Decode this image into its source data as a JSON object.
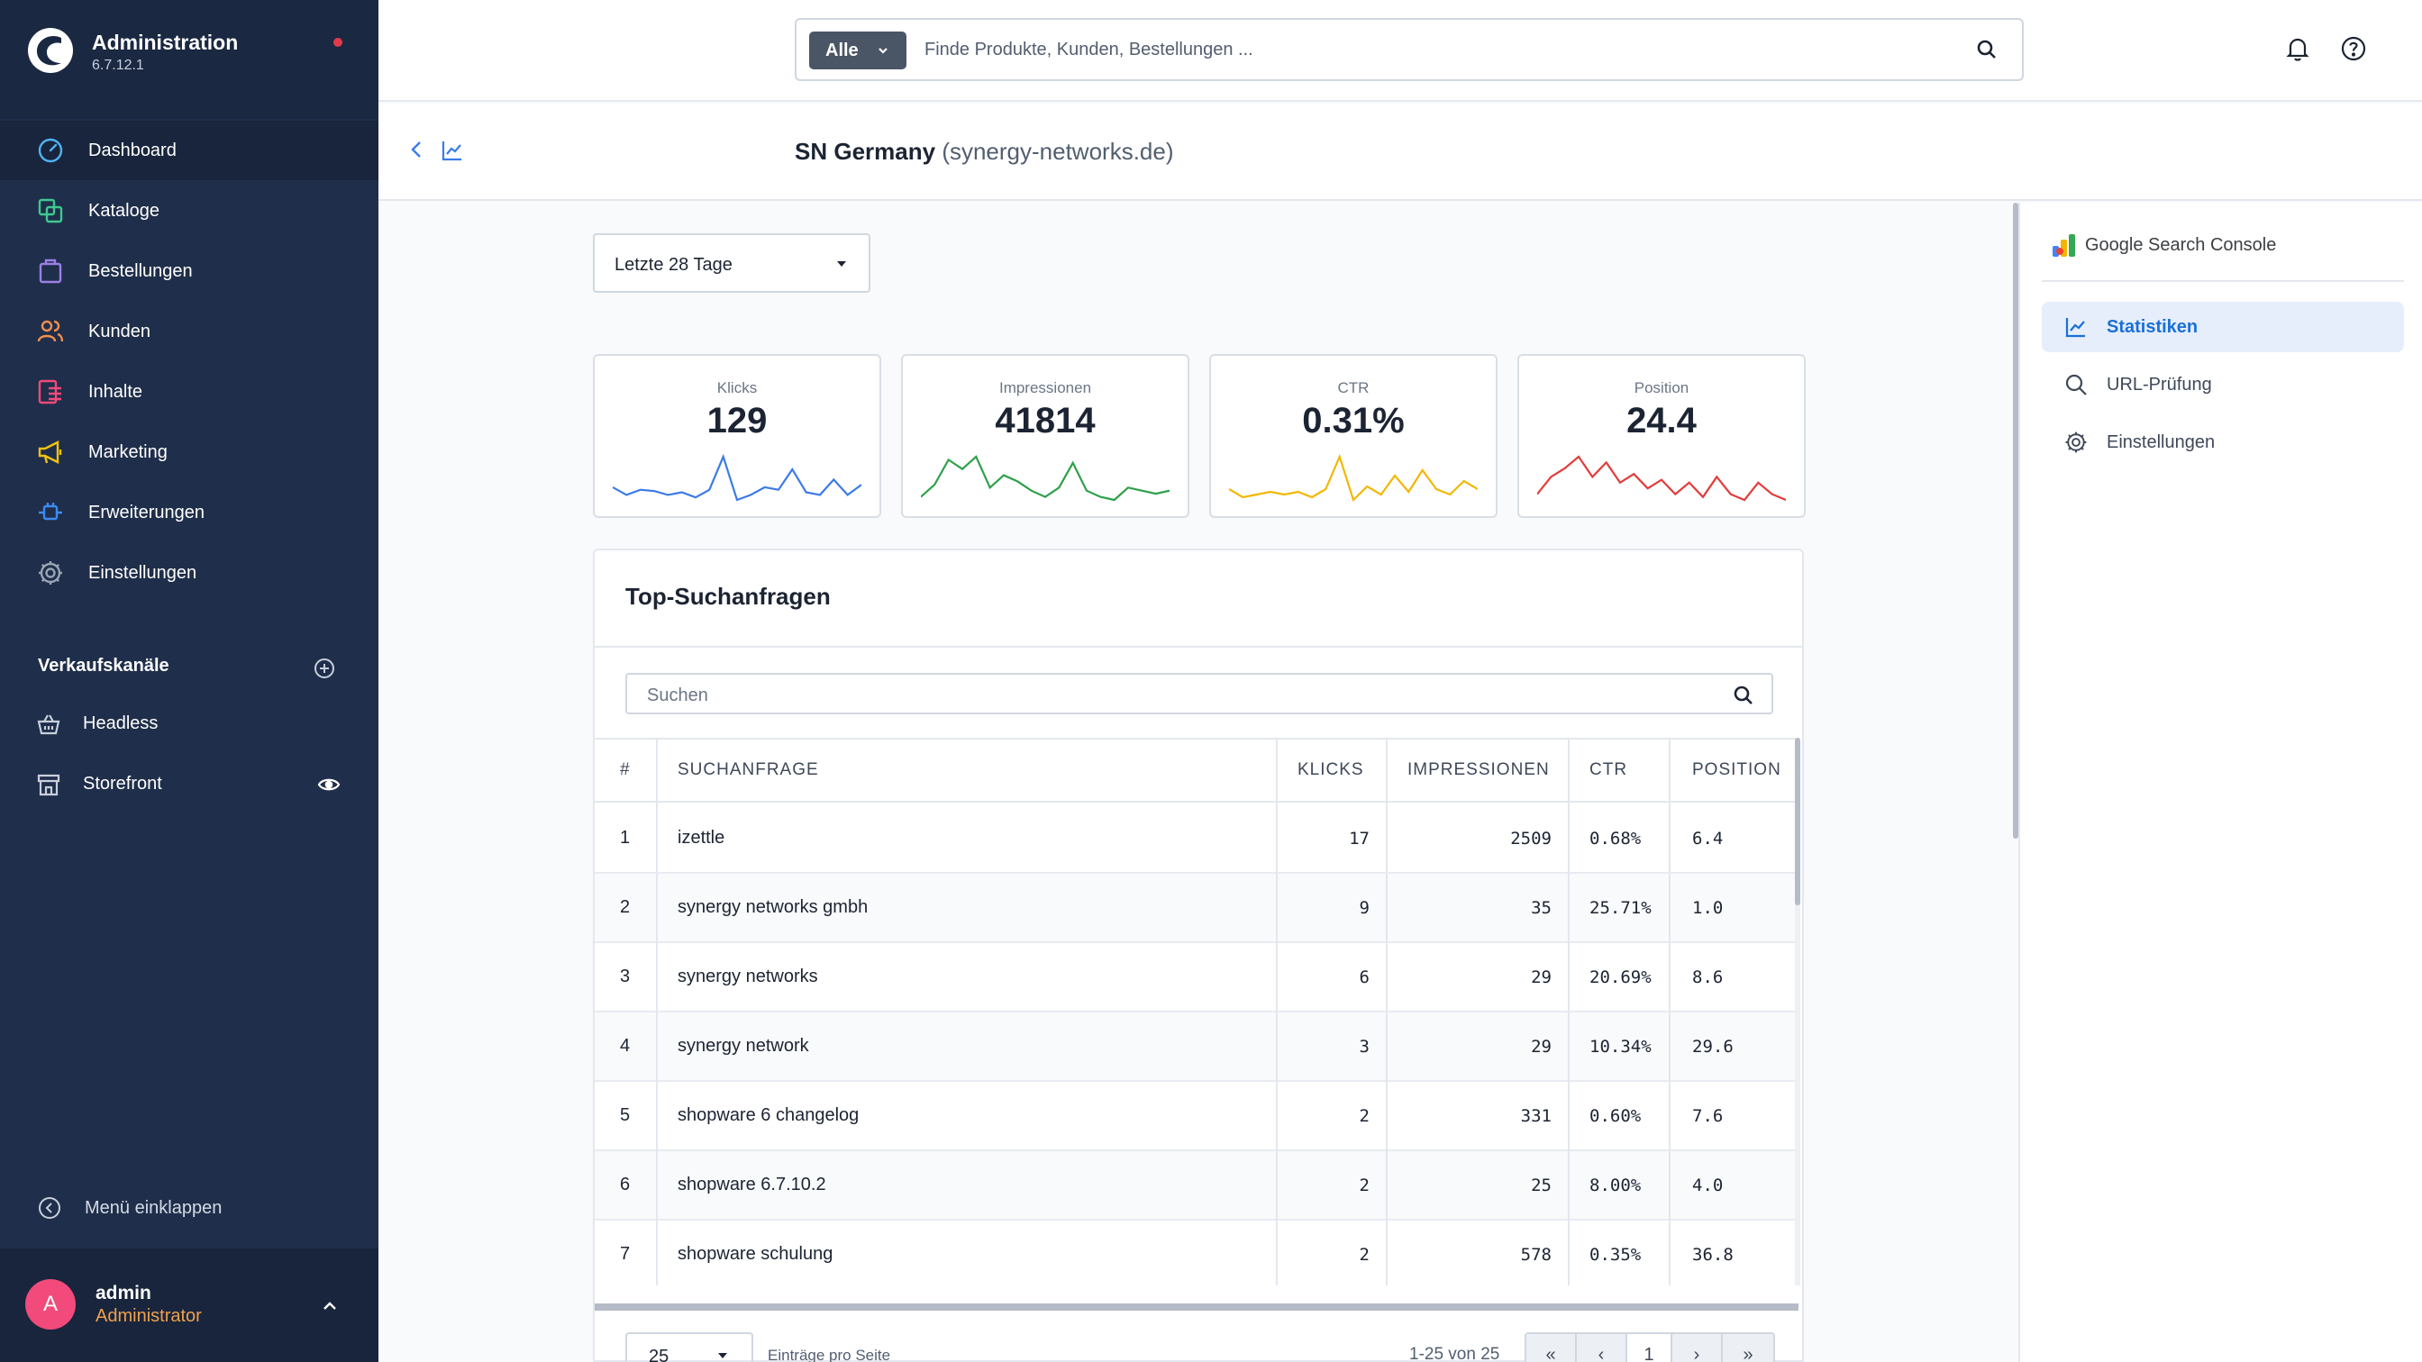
{
  "app": {
    "title": "Administration",
    "version": "6.7.12.1"
  },
  "sidebar": {
    "items": [
      {
        "label": "Dashboard",
        "icon": "dashboard-icon",
        "color": "#4fb3f0",
        "active": true
      },
      {
        "label": "Kataloge",
        "icon": "catalog-icon",
        "color": "#3ec98f"
      },
      {
        "label": "Bestellungen",
        "icon": "bag-icon",
        "color": "#9b7fe6"
      },
      {
        "label": "Kunden",
        "icon": "users-icon",
        "color": "#f08f4f"
      },
      {
        "label": "Inhalte",
        "icon": "content-icon",
        "color": "#f14a7b"
      },
      {
        "label": "Marketing",
        "icon": "megaphone-icon",
        "color": "#f2c20f"
      },
      {
        "label": "Erweiterungen",
        "icon": "plug-icon",
        "color": "#3b8cf0"
      },
      {
        "label": "Einstellungen",
        "icon": "gear-icon",
        "color": "#9aa4b3"
      }
    ],
    "section_title": "Verkaufskanäle",
    "channels": [
      {
        "label": "Headless",
        "icon": "basket-icon"
      },
      {
        "label": "Storefront",
        "icon": "store-icon"
      }
    ],
    "collapse_label": "Menü einklappen",
    "user": {
      "initial": "A",
      "name": "admin",
      "role": "Administrator"
    }
  },
  "search": {
    "type_label": "Alle",
    "placeholder": "Finde Produkte, Kunden, Bestellungen ..."
  },
  "page": {
    "title": "SN Germany",
    "subtitle": "(synergy-networks.de)"
  },
  "filter": {
    "range_label": "Letzte 28 Tage"
  },
  "stats": [
    {
      "label": "Klicks",
      "value": "129",
      "color": "#3b7be8",
      "trend": [
        28,
        22,
        26,
        25,
        22,
        24,
        20,
        26,
        52,
        18,
        22,
        28,
        26,
        42,
        24,
        22,
        34,
        22,
        30
      ]
    },
    {
      "label": "Impressionen",
      "value": "41814",
      "color": "#2ea04a",
      "trend": [
        22,
        30,
        46,
        40,
        48,
        28,
        36,
        32,
        26,
        22,
        28,
        44,
        26,
        22,
        20,
        28,
        26,
        24,
        26
      ]
    },
    {
      "label": "CTR",
      "value": "0.31%",
      "color": "#f2b705",
      "trend": [
        24,
        18,
        20,
        22,
        20,
        22,
        18,
        24,
        48,
        16,
        26,
        20,
        34,
        22,
        38,
        24,
        20,
        30,
        24
      ]
    },
    {
      "label": "Position",
      "value": "24.4",
      "color": "#e23b3b",
      "trend": [
        22,
        34,
        40,
        48,
        34,
        44,
        30,
        36,
        26,
        32,
        22,
        30,
        20,
        34,
        22,
        18,
        30,
        22,
        18
      ]
    }
  ],
  "table": {
    "title": "Top-Suchanfragen",
    "search_placeholder": "Suchen",
    "columns": [
      "#",
      "SUCHANFRAGE",
      "KLICKS",
      "IMPRESSIONEN",
      "CTR",
      "POSITION"
    ],
    "rows": [
      [
        "1",
        "izettle",
        "17",
        "2509",
        "0.68%",
        "6.4"
      ],
      [
        "2",
        "synergy networks gmbh",
        "9",
        "35",
        "25.71%",
        "1.0"
      ],
      [
        "3",
        "synergy networks",
        "6",
        "29",
        "20.69%",
        "8.6"
      ],
      [
        "4",
        "synergy network",
        "3",
        "29",
        "10.34%",
        "29.6"
      ],
      [
        "5",
        "shopware 6 changelog",
        "2",
        "331",
        "0.60%",
        "7.6"
      ],
      [
        "6",
        "shopware 6.7.10.2",
        "2",
        "25",
        "8.00%",
        "4.0"
      ],
      [
        "7",
        "shopware schulung",
        "2",
        "578",
        "0.35%",
        "36.8"
      ]
    ],
    "per_page_value": "25",
    "per_page_label": "Einträge pro Seite",
    "range_text": "1-25 von 25",
    "pager": {
      "first": "«",
      "prev": "‹",
      "current": "1",
      "next": "›",
      "last": "»"
    }
  },
  "panel": {
    "title": "Google Search Console",
    "items": [
      {
        "label": "Statistiken",
        "icon": "chart-line-icon",
        "active": true
      },
      {
        "label": "URL-Prüfung",
        "icon": "search-icon"
      },
      {
        "label": "Einstellungen",
        "icon": "gear-icon"
      }
    ]
  }
}
